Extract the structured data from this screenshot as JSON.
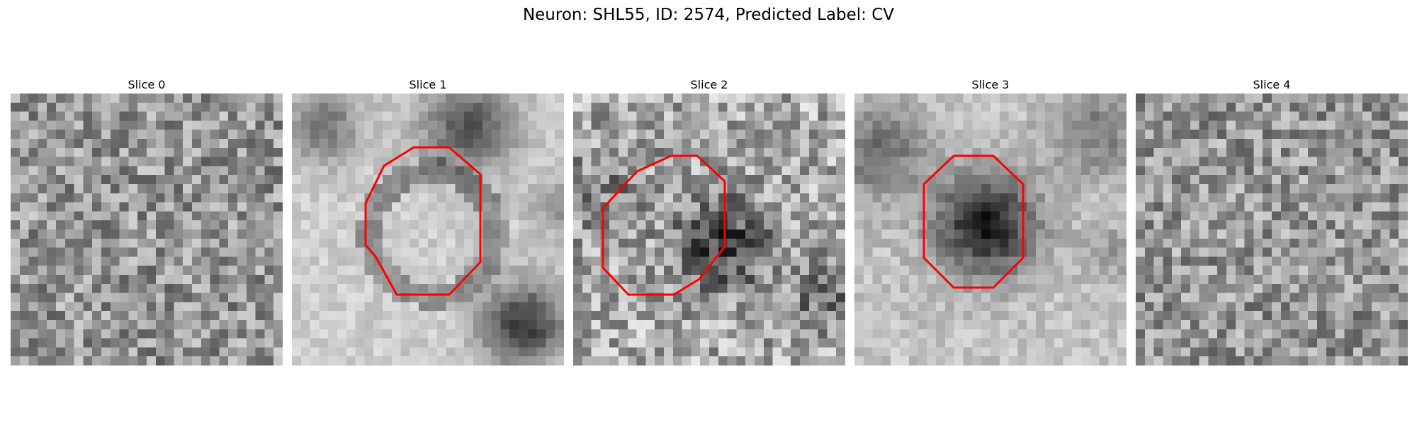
{
  "figure": {
    "title": "Neuron: SHL55, ID: 2574, Predicted Label: CV",
    "contour_color": "#ff0000",
    "colormap": "grayscale"
  },
  "slices": [
    {
      "label": "Slice 0",
      "has_contour": false,
      "pattern": "textured-noise",
      "seed": 11
    },
    {
      "label": "Slice 1",
      "has_contour": true,
      "pattern": "bright-ring-with-dark-blobs",
      "seed": 23
    },
    {
      "label": "Slice 2",
      "has_contour": true,
      "pattern": "dark-center-noisy",
      "seed": 37
    },
    {
      "label": "Slice 3",
      "has_contour": true,
      "pattern": "dark-center-smooth",
      "seed": 41
    },
    {
      "label": "Slice 4",
      "has_contour": false,
      "pattern": "textured-noise",
      "seed": 59
    }
  ]
}
